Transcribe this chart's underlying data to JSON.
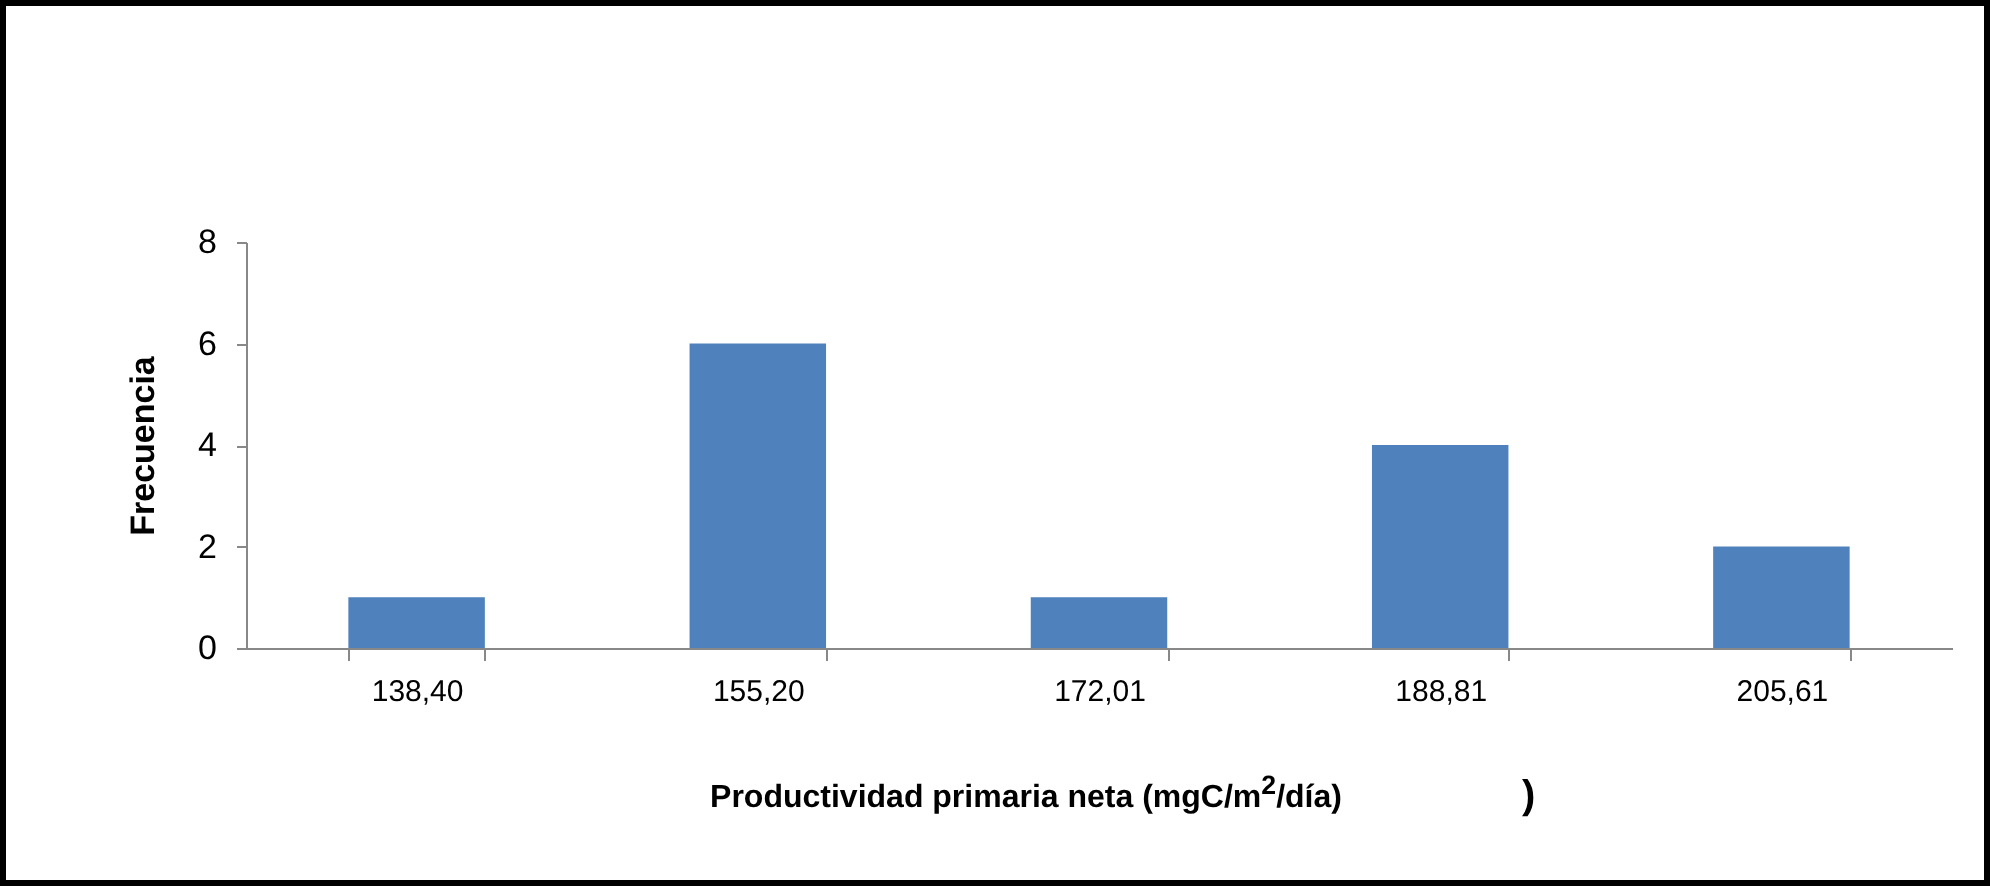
{
  "chart_data": {
    "type": "bar",
    "categories": [
      "138,40",
      "155,20",
      "172,01",
      "188,81",
      "205,61"
    ],
    "values": [
      1,
      6,
      1,
      4,
      2
    ],
    "color": "#4f81bd",
    "ylim": [
      0,
      8
    ],
    "yticks": [
      0,
      2,
      4,
      6,
      8
    ],
    "grid": false,
    "xlabel": "Productividad primaria neta (mgC/m$^{2}$/día)",
    "ylabel": "Frecuencia",
    "annotations": [
      ")"
    ]
  }
}
